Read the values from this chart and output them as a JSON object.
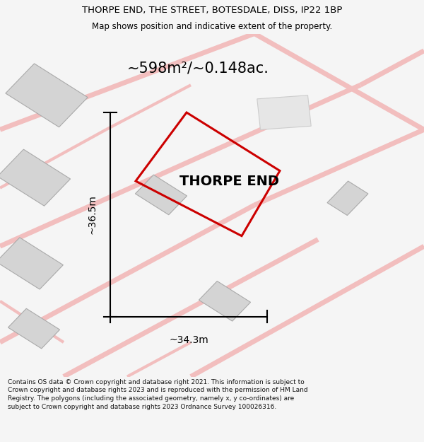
{
  "title_line1": "THORPE END, THE STREET, BOTESDALE, DISS, IP22 1BP",
  "title_line2": "Map shows position and indicative extent of the property.",
  "area_label": "~598m²/~0.148ac.",
  "property_label": "THORPE END",
  "dim_width": "~34.3m",
  "dim_height": "~36.5m",
  "footer_text": "Contains OS data © Crown copyright and database right 2021. This information is subject to Crown copyright and database rights 2023 and is reproduced with the permission of HM Land Registry. The polygons (including the associated geometry, namely x, y co-ordinates) are subject to Crown copyright and database rights 2023 Ordnance Survey 100026316.",
  "bg_color": "#f5f5f5",
  "map_bg": "#efefef",
  "road_color": "#f2bebe",
  "building_fc": "#d4d4d4",
  "building_ec": "#aaaaaa",
  "property_edge": "#cc0000",
  "footer_color": "#111111",
  "title_fontsize": 9.5,
  "subtitle_fontsize": 8.5,
  "area_fontsize": 15,
  "label_fontsize": 14,
  "dim_fontsize": 10,
  "footer_fontsize": 6.5
}
